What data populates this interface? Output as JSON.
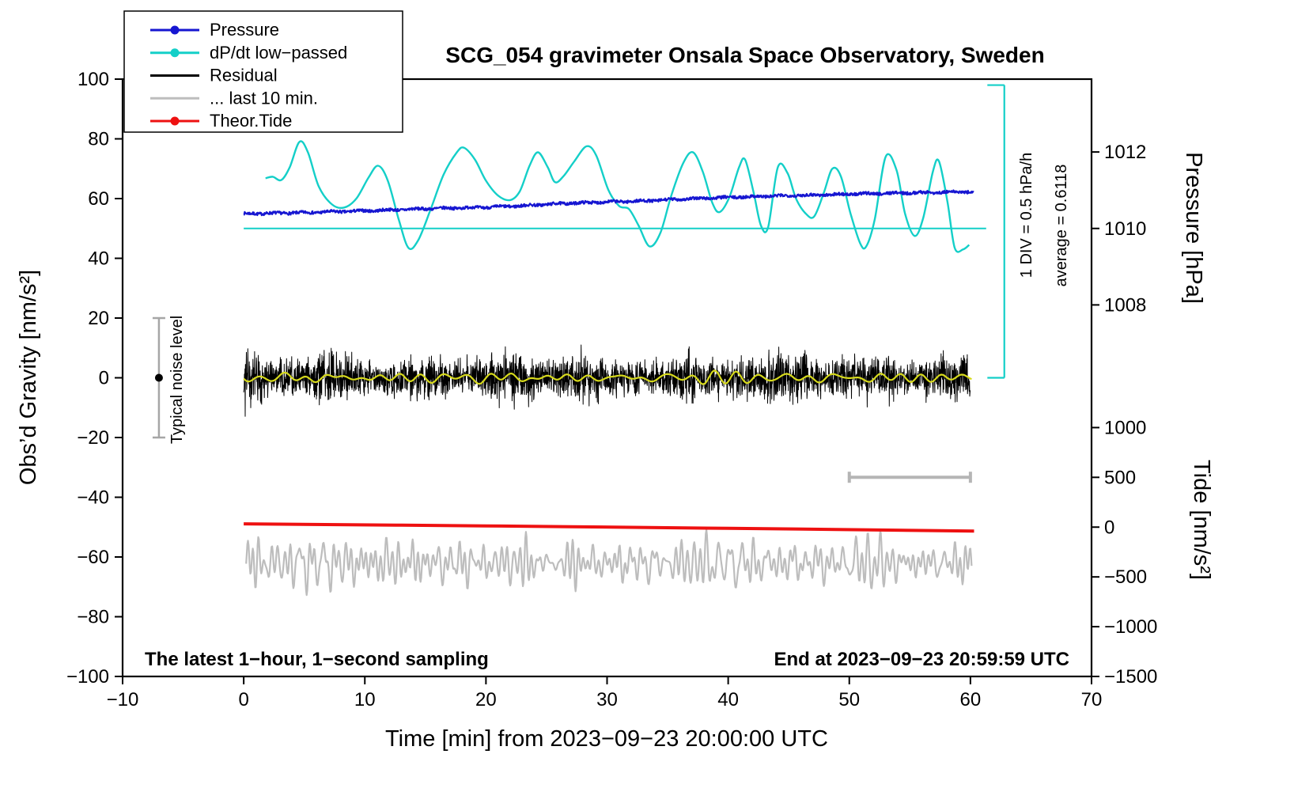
{
  "title": "SCG_054 gravimeter Onsala Space Observatory, Sweden",
  "footer": {
    "sampling_note": "The latest 1−hour, 1−second sampling",
    "end_time": "End at 2023−09−23 20:59:59 UTC"
  },
  "annotations": {
    "div_scale": "1 DIV = 0.5 hPa/h",
    "average": "average = 0.6118",
    "noise_level": "Typical noise level"
  },
  "legend": {
    "items": [
      {
        "label": "Pressure",
        "color": "#1616d1",
        "dot": true
      },
      {
        "label": "dP/dt low−passed",
        "color": "#14cfc8",
        "dot": true
      },
      {
        "label": "Residual",
        "color": "#000000",
        "dot": false
      },
      {
        "label": "... last 10 min.",
        "color": "#bdbdbd",
        "dot": false
      },
      {
        "label": "Theor.Tide",
        "color": "#ee1111",
        "dot": true
      }
    ]
  },
  "chart_data": {
    "type": "line",
    "title": "SCG_054 gravimeter Onsala Space Observatory, Sweden",
    "xlim": [
      -10,
      70
    ],
    "ylim": [
      -100,
      100
    ],
    "grid": false,
    "axes": {
      "x": {
        "label": "Time [min] from 2023−09−23 20:00:00 UTC",
        "ticks": [
          {
            "v": -10,
            "label": "−10"
          },
          {
            "v": 0,
            "label": "0"
          },
          {
            "v": 10,
            "label": "10"
          },
          {
            "v": 20,
            "label": "20"
          },
          {
            "v": 30,
            "label": "30"
          },
          {
            "v": 40,
            "label": "40"
          },
          {
            "v": 50,
            "label": "50"
          },
          {
            "v": 60,
            "label": "60"
          },
          {
            "v": 70,
            "label": "70"
          }
        ]
      },
      "y_left": {
        "label": "Obs’d Gravity [nm/s²]",
        "ticks": [
          {
            "v": 100,
            "label": "100"
          },
          {
            "v": 80,
            "label": "80"
          },
          {
            "v": 60,
            "label": "60"
          },
          {
            "v": 40,
            "label": "40"
          },
          {
            "v": 20,
            "label": "20"
          },
          {
            "v": 0,
            "label": "0"
          },
          {
            "v": -20,
            "label": "−20"
          },
          {
            "v": -40,
            "label": "−40"
          },
          {
            "v": -60,
            "label": "−60"
          },
          {
            "v": -80,
            "label": "−80"
          },
          {
            "v": -100,
            "label": "−100"
          }
        ]
      },
      "y_right_pressure": {
        "label": "Pressure [hPa]",
        "ticks": [
          {
            "g": 75.6,
            "label": "1012"
          },
          {
            "g": 50.0,
            "label": "1010"
          },
          {
            "g": 24.4,
            "label": "1008"
          }
        ]
      },
      "y_right_tide": {
        "label": "Tide [nm/s²]",
        "ticks": [
          {
            "g": -16.67,
            "label": "1000"
          },
          {
            "g": -33.33,
            "label": "500"
          },
          {
            "g": -50.0,
            "label": "0"
          },
          {
            "g": -66.67,
            "label": "−500"
          },
          {
            "g": -83.33,
            "label": "−1000"
          },
          {
            "g": -100.0,
            "label": "−1500"
          }
        ]
      }
    },
    "refs": {
      "dpdt_zero_line": {
        "g": 50,
        "t0": 0,
        "t1": 61.3,
        "color": "#14cfc8",
        "width": 2
      },
      "div_bar": {
        "t": 62.8,
        "g0": 0,
        "g1": 98,
        "cap_t": 61.4,
        "color": "#14cfc8",
        "width": 2.2
      },
      "noise_bar": {
        "t": -7,
        "g0": -20,
        "g1": 20,
        "dot_g": 0,
        "color": "#a6a6a6",
        "dot_color": "#000000",
        "width": 2.5
      },
      "scale_bar": {
        "g": -33.3,
        "t0": 50,
        "t1": 60,
        "color": "#b5b5b5",
        "width": 4
      }
    },
    "series": [
      {
        "id": "dpdt",
        "name": "dP/dt low−passed",
        "kind": "smooth",
        "color": "#14cfc8",
        "width": 2.4,
        "points": [
          [
            1.8,
            66.8
          ],
          [
            2.4,
            67.3
          ],
          [
            3.1,
            66.2
          ],
          [
            3.8,
            70.5
          ],
          [
            4.6,
            79
          ],
          [
            5.3,
            75.5
          ],
          [
            6.2,
            64
          ],
          [
            7.3,
            58
          ],
          [
            8.3,
            57
          ],
          [
            9.3,
            60
          ],
          [
            10.3,
            67
          ],
          [
            11.1,
            71
          ],
          [
            11.9,
            66
          ],
          [
            12.8,
            53
          ],
          [
            13.6,
            43.5
          ],
          [
            14.4,
            46
          ],
          [
            15.4,
            56
          ],
          [
            16.5,
            68
          ],
          [
            17.6,
            75.5
          ],
          [
            18.2,
            77
          ],
          [
            19.1,
            73
          ],
          [
            20,
            66
          ],
          [
            21,
            61
          ],
          [
            22,
            59.5
          ],
          [
            22.8,
            62.5
          ],
          [
            23.6,
            71
          ],
          [
            24.3,
            75.5
          ],
          [
            25.1,
            70.5
          ],
          [
            25.7,
            65.5
          ],
          [
            26.4,
            67.5
          ],
          [
            27.3,
            72.5
          ],
          [
            28.3,
            77.5
          ],
          [
            29.1,
            74.5
          ],
          [
            30.1,
            63
          ],
          [
            31,
            57.5
          ],
          [
            31.8,
            56.5
          ],
          [
            32.6,
            51
          ],
          [
            33.5,
            44
          ],
          [
            34.4,
            48.5
          ],
          [
            35.3,
            61
          ],
          [
            36.3,
            72
          ],
          [
            37.1,
            75.5
          ],
          [
            37.9,
            69
          ],
          [
            38.7,
            58.5
          ],
          [
            39.3,
            55.5
          ],
          [
            40.1,
            60.5
          ],
          [
            40.9,
            70.5
          ],
          [
            41.4,
            73
          ],
          [
            42.1,
            62
          ],
          [
            42.7,
            51
          ],
          [
            43.3,
            50.5
          ],
          [
            44.1,
            70.5
          ],
          [
            44.9,
            68.5
          ],
          [
            45.6,
            60
          ],
          [
            46.4,
            55
          ],
          [
            47.1,
            54
          ],
          [
            47.9,
            62
          ],
          [
            48.6,
            70
          ],
          [
            49.3,
            67.5
          ],
          [
            50.1,
            55
          ],
          [
            50.9,
            45
          ],
          [
            51.4,
            44
          ],
          [
            52.1,
            53
          ],
          [
            53,
            74
          ],
          [
            53.9,
            69.5
          ],
          [
            54.6,
            55
          ],
          [
            55.4,
            47.5
          ],
          [
            56.1,
            53.5
          ],
          [
            56.9,
            69
          ],
          [
            57.4,
            72.5
          ],
          [
            58.1,
            59
          ],
          [
            58.7,
            43.5
          ],
          [
            59.4,
            43
          ],
          [
            59.9,
            44.5
          ]
        ]
      },
      {
        "id": "pressure",
        "name": "Pressure",
        "kind": "noisy_trend",
        "color": "#1616d1",
        "width": 2.2,
        "seed": 7,
        "jitter": 0.5,
        "step": 0.04,
        "points": [
          [
            0,
            54.9
          ],
          [
            5,
            55.3
          ],
          [
            10,
            55.9
          ],
          [
            15,
            56.6
          ],
          [
            20,
            57.1
          ],
          [
            23,
            57.6
          ],
          [
            26,
            58.3
          ],
          [
            30,
            58.9
          ],
          [
            33,
            59.2
          ],
          [
            36,
            59.8
          ],
          [
            40,
            60.4
          ],
          [
            44,
            60.9
          ],
          [
            48,
            61.3
          ],
          [
            52,
            61.7
          ],
          [
            56,
            62.0
          ],
          [
            60.3,
            62.3
          ]
        ]
      },
      {
        "id": "residual",
        "name": "Residual",
        "kind": "noise",
        "color": "#000000",
        "width": 1,
        "seed": 3,
        "t0": 0,
        "t1": 60,
        "step": 0.02,
        "mean": 0,
        "sigma": 3.3,
        "spike_prob": 0.012,
        "clip": 14
      },
      {
        "id": "residual-lowpass",
        "name": "Residual smoothed (yellow)",
        "kind": "smooth_noise",
        "color": "#d6d91c",
        "width": 2.2,
        "seed": 11,
        "t0": 0,
        "t1": 60.2,
        "step": 0.1,
        "mean": 0,
        "amp": 0.8,
        "fmin": 0.15,
        "fmax": 1.0,
        "ncomp": 7
      },
      {
        "id": "last10",
        "name": "... last 10 min.",
        "kind": "smooth_noise",
        "color": "#bdbdbd",
        "width": 2.2,
        "seed": 5,
        "t0": 0.2,
        "t1": 60.1,
        "step": 0.05,
        "mean": -62,
        "amp": 3.8,
        "fmin": 0.5,
        "fmax": 2.6,
        "ncomp": 14
      },
      {
        "id": "tide",
        "name": "Theor.Tide",
        "kind": "smooth",
        "color": "#ee1111",
        "width": 4,
        "points": [
          [
            0,
            -48.9
          ],
          [
            20,
            -49.6
          ],
          [
            40,
            -50.4
          ],
          [
            60.3,
            -51.3
          ]
        ]
      }
    ]
  }
}
